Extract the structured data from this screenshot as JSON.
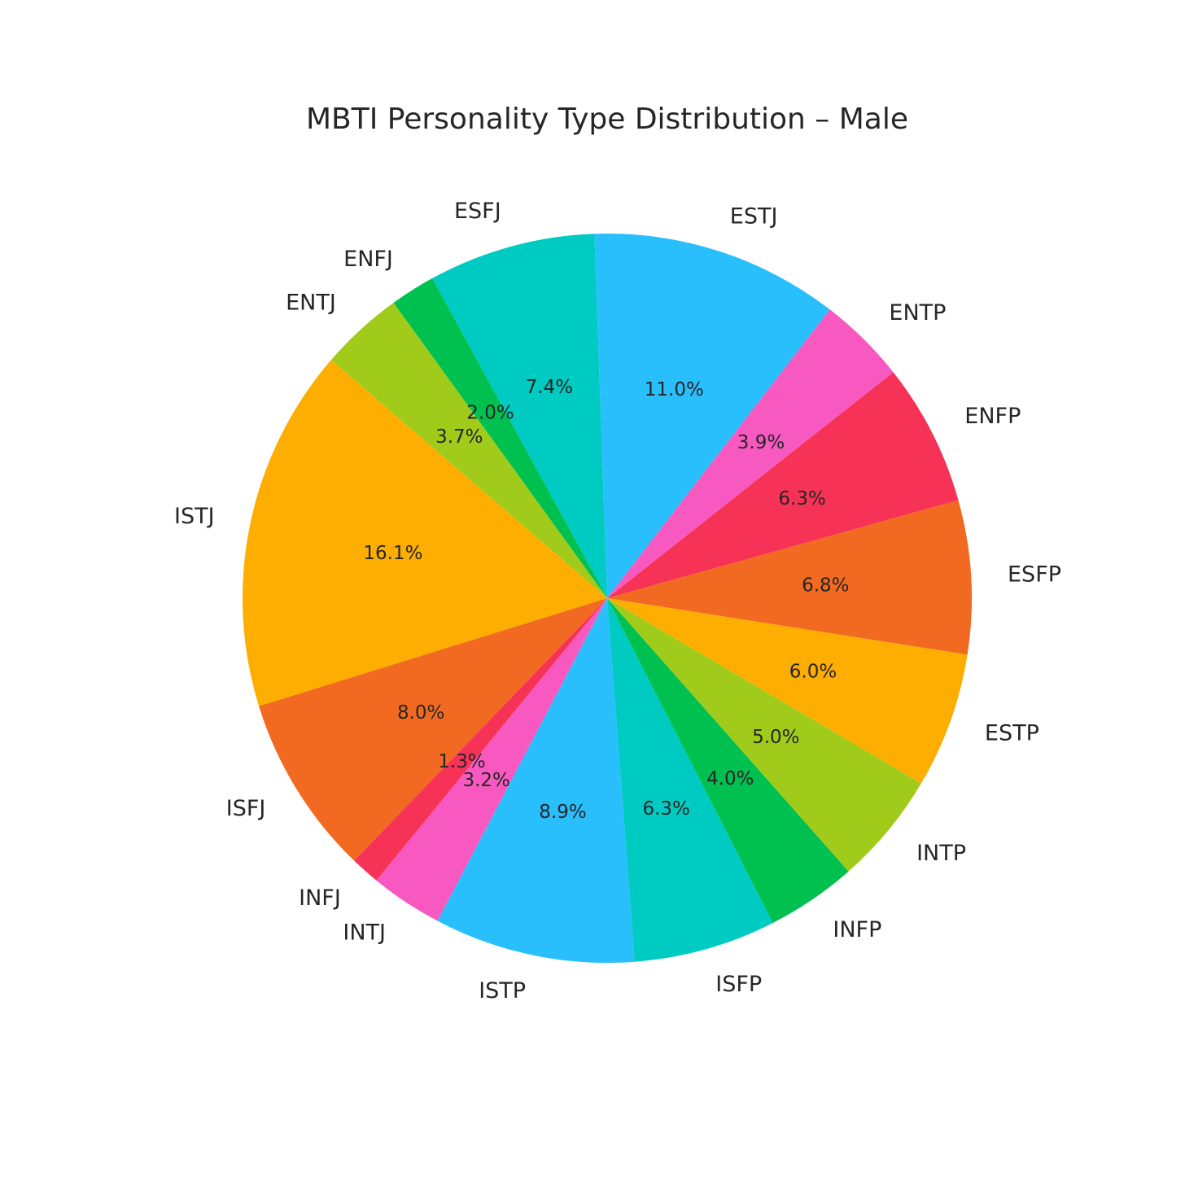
{
  "chart_data": {
    "type": "pie",
    "title": "MBTI Personality Type Distribution – Male",
    "start_angle_deg": 92,
    "direction": "counterclockwise",
    "slices": [
      {
        "label": "ESFJ",
        "value": 7.4,
        "pct_label": "7.4%",
        "color": "#00CBC2"
      },
      {
        "label": "ENFJ",
        "value": 2.0,
        "pct_label": "2.0%",
        "color": "#00C04F"
      },
      {
        "label": "ENTJ",
        "value": 3.7,
        "pct_label": "3.7%",
        "color": "#A0CB1B"
      },
      {
        "label": "ISTJ",
        "value": 16.1,
        "pct_label": "16.1%",
        "color": "#FEAE00"
      },
      {
        "label": "ISFJ",
        "value": 8.0,
        "pct_label": "8.0%",
        "color": "#F26A21"
      },
      {
        "label": "INFJ",
        "value": 1.3,
        "pct_label": "1.3%",
        "color": "#F73257"
      },
      {
        "label": "INTJ",
        "value": 3.2,
        "pct_label": "3.2%",
        "color": "#F859C0"
      },
      {
        "label": "ISTP",
        "value": 8.9,
        "pct_label": "8.9%",
        "color": "#29BEFC"
      },
      {
        "label": "ISFP",
        "value": 6.3,
        "pct_label": "6.3%",
        "color": "#00CBC2"
      },
      {
        "label": "INFP",
        "value": 4.0,
        "pct_label": "4.0%",
        "color": "#00C04F"
      },
      {
        "label": "INTP",
        "value": 5.0,
        "pct_label": "5.0%",
        "color": "#A0CB1B"
      },
      {
        "label": "ESTP",
        "value": 6.0,
        "pct_label": "6.0%",
        "color": "#FEAE00"
      },
      {
        "label": "ESFP",
        "value": 6.8,
        "pct_label": "6.8%",
        "color": "#F26A21"
      },
      {
        "label": "ENFP",
        "value": 6.3,
        "pct_label": "6.3%",
        "color": "#F73257"
      },
      {
        "label": "ENTP",
        "value": 3.9,
        "pct_label": "3.9%",
        "color": "#F859C0"
      },
      {
        "label": "ESTJ",
        "value": 11.0,
        "pct_label": "11.0%",
        "color": "#29BEFC"
      }
    ]
  }
}
